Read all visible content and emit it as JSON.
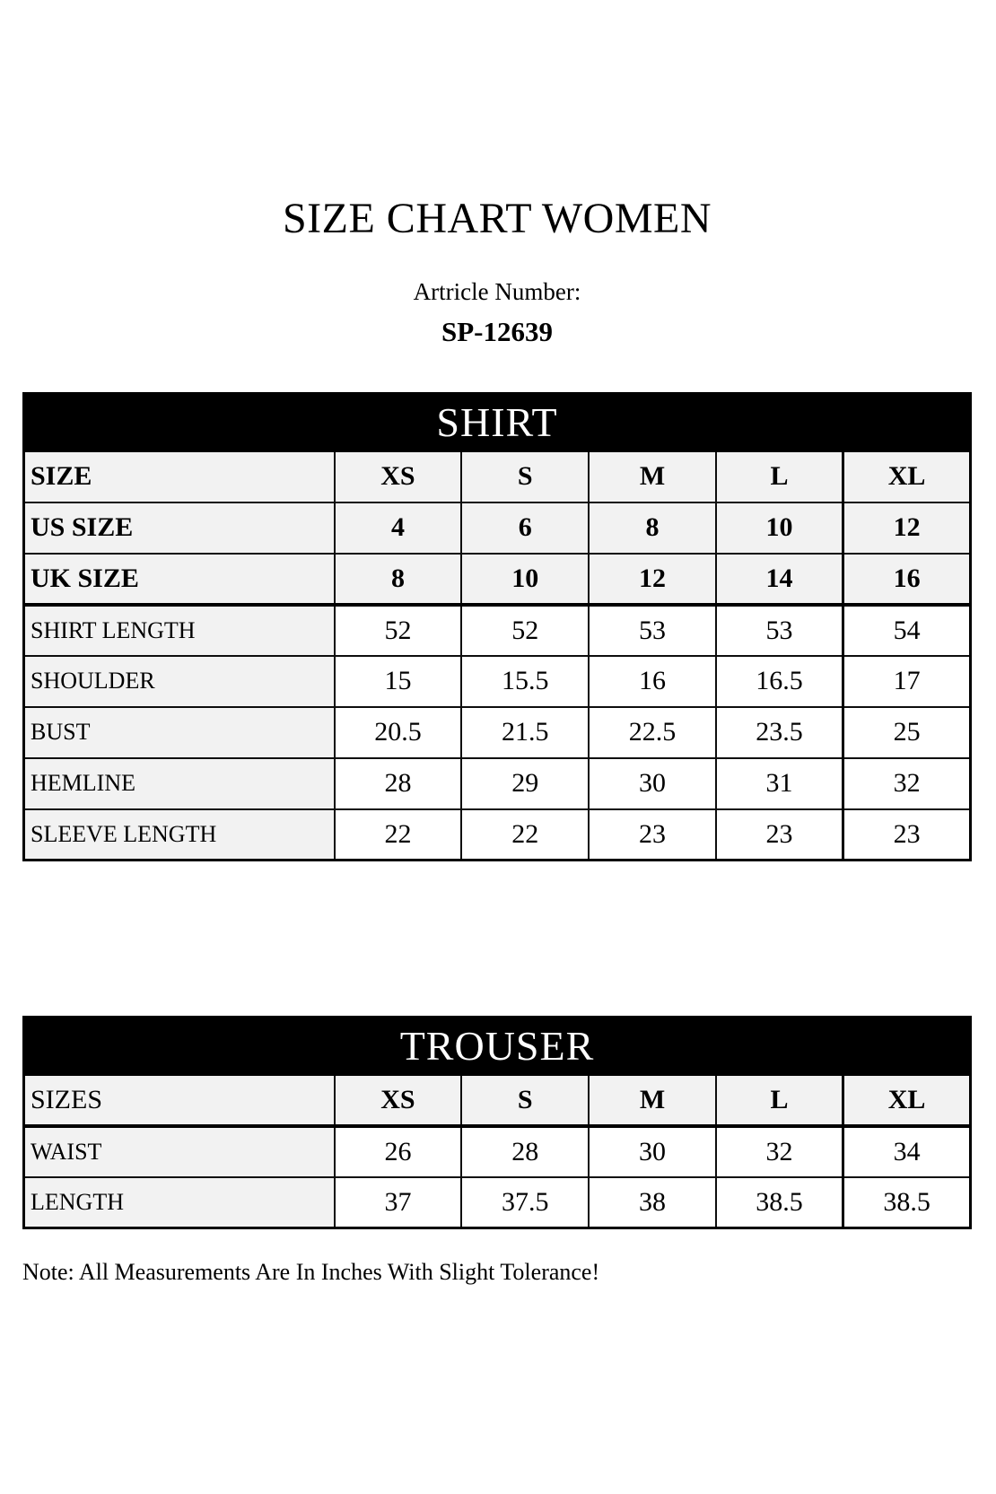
{
  "page": {
    "title": "SIZE CHART WOMEN",
    "article_label": "Artricle Number:",
    "article_number": "SP-12639",
    "note": "Note: All Measurements Are In Inches With Slight Tolerance!"
  },
  "colors": {
    "banner_bg": "#000000",
    "banner_text": "#ffffff",
    "shaded_cell_bg": "#f2f2f2",
    "border": "#000000"
  },
  "shirt_table": {
    "title": "SHIRT",
    "size_columns": [
      "XS",
      "S",
      "M",
      "L",
      "XL"
    ],
    "rows": [
      {
        "label": "SIZE",
        "values": [
          "XS",
          "S",
          "M",
          "L",
          "XL"
        ],
        "label_bold": true,
        "values_bold": true,
        "shaded": true
      },
      {
        "label": "US SIZE",
        "values": [
          "4",
          "6",
          "8",
          "10",
          "12"
        ],
        "label_bold": true,
        "values_bold": true,
        "shaded": true
      },
      {
        "label": "UK SIZE",
        "values": [
          "8",
          "10",
          "12",
          "14",
          "16"
        ],
        "label_bold": true,
        "values_bold": true,
        "shaded": true,
        "section_end": true
      },
      {
        "label": "SHIRT LENGTH",
        "values": [
          "52",
          "52",
          "53",
          "53",
          "54"
        ]
      },
      {
        "label": "SHOULDER",
        "values": [
          "15",
          "15.5",
          "16",
          "16.5",
          "17"
        ]
      },
      {
        "label": "BUST",
        "values": [
          "20.5",
          "21.5",
          "22.5",
          "23.5",
          "25"
        ]
      },
      {
        "label": "HEMLINE",
        "values": [
          "28",
          "29",
          "30",
          "31",
          "32"
        ]
      },
      {
        "label": "SLEEVE LENGTH",
        "values": [
          "22",
          "22",
          "23",
          "23",
          "23"
        ]
      }
    ]
  },
  "trouser_table": {
    "title": "TROUSER",
    "size_columns": [
      "XS",
      "S",
      "M",
      "L",
      "XL"
    ],
    "rows": [
      {
        "label": "SIZES",
        "values": [
          "XS",
          "S",
          "M",
          "L",
          "XL"
        ],
        "label_large": true,
        "values_bold": true,
        "shaded": true,
        "section_end": true
      },
      {
        "label": "WAIST",
        "values": [
          "26",
          "28",
          "30",
          "32",
          "34"
        ]
      },
      {
        "label": "LENGTH",
        "values": [
          "37",
          "37.5",
          "38",
          "38.5",
          "38.5"
        ]
      }
    ]
  }
}
